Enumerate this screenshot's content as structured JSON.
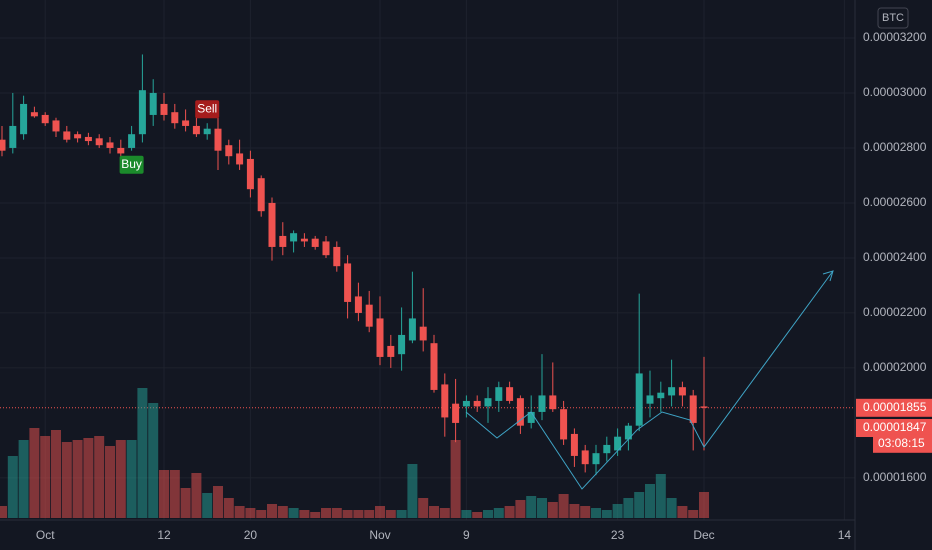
{
  "chart_data": {
    "type": "candlestick",
    "currency": "BTC",
    "categories": [
      null,
      null,
      null,
      null,
      "Oct",
      null,
      null,
      null,
      null,
      null,
      null,
      null,
      null,
      null,
      null,
      "12",
      null,
      null,
      null,
      null,
      null,
      null,
      null,
      "20",
      null,
      null,
      null,
      null,
      null,
      null,
      null,
      null,
      null,
      null,
      null,
      "Nov",
      null,
      null,
      null,
      null,
      null,
      null,
      null,
      "9",
      null,
      null,
      null,
      null,
      null,
      null,
      null,
      null,
      null,
      null,
      null,
      null,
      null,
      "23",
      null,
      null,
      null,
      null,
      null,
      null,
      null,
      "Dec",
      null,
      null,
      null,
      null,
      null,
      null,
      null,
      null,
      null,
      null,
      null,
      null,
      "14",
      null
    ],
    "open": [
      2.83e-05,
      2.8e-05,
      2.85e-05,
      2.93e-05,
      2.92e-05,
      2.9e-05,
      2.86e-05,
      2.85e-05,
      2.84e-05,
      2.835e-05,
      2.82e-05,
      2.8e-05,
      2.8e-05,
      2.85e-05,
      2.92e-05,
      2.96e-05,
      2.93e-05,
      2.9e-05,
      2.88e-05,
      2.85e-05,
      2.87e-05,
      2.81e-05,
      2.78e-05,
      2.76e-05,
      2.69e-05,
      2.6e-05,
      2.48e-05,
      2.46e-05,
      2.47e-05,
      2.47e-05,
      2.46e-05,
      2.44e-05,
      2.38e-05,
      2.26e-05,
      2.23e-05,
      2.18e-05,
      2.08e-05,
      2.05e-05,
      2.1e-05,
      2.15e-05,
      2.09e-05,
      1.94e-05,
      1.87e-05,
      1.86e-05,
      1.88e-05,
      1.86e-05,
      1.88e-05,
      1.93e-05,
      1.89e-05,
      1.8e-05,
      1.84e-05,
      1.9e-05,
      1.85e-05,
      1.76e-05,
      1.7e-05,
      1.65e-05,
      1.69e-05,
      1.7e-05,
      1.74e-05,
      1.79e-05,
      1.87e-05,
      1.89e-05,
      1.9e-05,
      1.93e-05,
      1.9e-05,
      1.86e-05,
      null,
      null,
      null,
      null,
      null,
      null,
      null,
      null,
      null,
      null,
      null,
      null,
      null,
      null
    ],
    "high": [
      2.88e-05,
      3e-05,
      2.99e-05,
      2.95e-05,
      2.93e-05,
      2.91e-05,
      2.88e-05,
      2.86e-05,
      2.855e-05,
      2.85e-05,
      2.84e-05,
      2.83e-05,
      2.88e-05,
      3.14e-05,
      3.05e-05,
      3e-05,
      2.96e-05,
      2.94e-05,
      2.92e-05,
      2.89e-05,
      2.92e-05,
      2.83e-05,
      2.83e-05,
      2.79e-05,
      2.7e-05,
      2.62e-05,
      2.53e-05,
      2.5e-05,
      2.49e-05,
      2.48e-05,
      2.48e-05,
      2.46e-05,
      2.41e-05,
      2.31e-05,
      2.28e-05,
      2.26e-05,
      2.12e-05,
      2.22e-05,
      2.35e-05,
      2.29e-05,
      2.12e-05,
      1.98e-05,
      1.96e-05,
      1.9e-05,
      1.9e-05,
      1.93e-05,
      1.95e-05,
      1.95e-05,
      1.9e-05,
      1.9e-05,
      2.05e-05,
      2.02e-05,
      1.88e-05,
      1.78e-05,
      1.72e-05,
      1.72e-05,
      1.75e-05,
      1.78e-05,
      1.8e-05,
      2.27e-05,
      1.99e-05,
      1.95e-05,
      2.03e-05,
      1.95e-05,
      1.92e-05,
      2.04e-05,
      null,
      null,
      null,
      null,
      null,
      null,
      null,
      null,
      null,
      null,
      null,
      null,
      null,
      null
    ],
    "low": [
      2.77e-05,
      2.78e-05,
      2.83e-05,
      2.91e-05,
      2.88e-05,
      2.84e-05,
      2.82e-05,
      2.82e-05,
      2.81e-05,
      2.8e-05,
      2.78e-05,
      2.76e-05,
      2.79e-05,
      2.82e-05,
      2.88e-05,
      2.9e-05,
      2.87e-05,
      2.86e-05,
      2.84e-05,
      2.83e-05,
      2.72e-05,
      2.74e-05,
      2.72e-05,
      2.62e-05,
      2.55e-05,
      2.39e-05,
      2.41e-05,
      2.42e-05,
      2.44e-05,
      2.43e-05,
      2.4e-05,
      2.35e-05,
      2.18e-05,
      2.17e-05,
      2.13e-05,
      2.01e-05,
      2e-05,
      1.99e-05,
      2.09e-05,
      2.06e-05,
      1.91e-05,
      1.75e-05,
      1.73e-05,
      1.82e-05,
      1.84e-05,
      1.8e-05,
      1.84e-05,
      1.87e-05,
      1.76e-05,
      1.78e-05,
      1.81e-05,
      1.84e-05,
      1.72e-05,
      1.64e-05,
      1.62e-05,
      1.61e-05,
      1.66e-05,
      1.68e-05,
      1.7e-05,
      1.77e-05,
      1.82e-05,
      1.84e-05,
      1.86e-05,
      1.86e-05,
      1.7e-05,
      1.7e-05,
      null,
      null,
      null,
      null,
      null,
      null,
      null,
      null,
      null,
      null,
      null,
      null,
      null,
      null
    ],
    "close": [
      2.79e-05,
      2.88e-05,
      2.96e-05,
      2.915e-05,
      2.89e-05,
      2.86e-05,
      2.83e-05,
      2.835e-05,
      2.825e-05,
      2.81e-05,
      2.8e-05,
      2.78e-05,
      2.85e-05,
      3.01e-05,
      3e-05,
      2.92e-05,
      2.89e-05,
      2.88e-05,
      2.85e-05,
      2.87e-05,
      2.79e-05,
      2.77e-05,
      2.74e-05,
      2.65e-05,
      2.57e-05,
      2.44e-05,
      2.44e-05,
      2.49e-05,
      2.46e-05,
      2.44e-05,
      2.41e-05,
      2.37e-05,
      2.24e-05,
      2.2e-05,
      2.15e-05,
      2.04e-05,
      2.04e-05,
      2.12e-05,
      2.18e-05,
      2.1e-05,
      1.92e-05,
      1.82e-05,
      1.8e-05,
      1.88e-05,
      1.86e-05,
      1.89e-05,
      1.93e-05,
      1.88e-05,
      1.79e-05,
      1.84e-05,
      1.9e-05,
      1.85e-05,
      1.74e-05,
      1.68e-05,
      1.65e-05,
      1.69e-05,
      1.72e-05,
      1.75e-05,
      1.79e-05,
      1.98e-05,
      1.9e-05,
      1.91e-05,
      1.93e-05,
      1.9e-05,
      1.8e-05,
      1.855e-05,
      null,
      null,
      null,
      null,
      null,
      null,
      null,
      null,
      null,
      null,
      null,
      null,
      null,
      null
    ],
    "volume": [
      12,
      62,
      78,
      90,
      82,
      88,
      76,
      78,
      80,
      82,
      72,
      78,
      78,
      130,
      115,
      48,
      48,
      30,
      45,
      25,
      32,
      20,
      12,
      10,
      8,
      14,
      12,
      10,
      8,
      6,
      10,
      10,
      8,
      8,
      8,
      12,
      8,
      8,
      54,
      20,
      12,
      10,
      78,
      8,
      6,
      8,
      10,
      12,
      18,
      22,
      20,
      16,
      24,
      14,
      12,
      10,
      8,
      14,
      20,
      26,
      34,
      44,
      20,
      12,
      8,
      26,
      null,
      null,
      null,
      null,
      null,
      null,
      null,
      null,
      null,
      null,
      null,
      null,
      null,
      null
    ],
    "signals": [
      null,
      null,
      null,
      null,
      null,
      null,
      null,
      null,
      null,
      null,
      null,
      null,
      "Buy",
      null,
      null,
      null,
      null,
      null,
      null,
      "Sell",
      null,
      null,
      null,
      null,
      null,
      null,
      null,
      null,
      null,
      null,
      null,
      null,
      null,
      null,
      null,
      null,
      null,
      null,
      null,
      null,
      null,
      null,
      null,
      null,
      null,
      null,
      null,
      null,
      null,
      null,
      null,
      null,
      null,
      null,
      null,
      null,
      null,
      null,
      null,
      null,
      null,
      null,
      null,
      null,
      null,
      null,
      null,
      null,
      null,
      null,
      null,
      null,
      null,
      null,
      null,
      null,
      null,
      null,
      null,
      null
    ],
    "up_color": "#26a69a",
    "down_color": "#ef5350",
    "ylim": [
      1.447e-05,
      3.338e-05
    ],
    "yticks": [
      {
        "value": 3.2e-05,
        "label": "0.00003200"
      },
      {
        "value": 3e-05,
        "label": "0.00003000"
      },
      {
        "value": 2.8e-05,
        "label": "0.00002800"
      },
      {
        "value": 2.6e-05,
        "label": "0.00002600"
      },
      {
        "value": 2.4e-05,
        "label": "0.00002400"
      },
      {
        "value": 2.2e-05,
        "label": "0.00002200"
      },
      {
        "value": 2e-05,
        "label": "0.00002000"
      },
      {
        "value": 1.6e-05,
        "label": "0.00001600"
      }
    ],
    "price_tags": [
      1.855e-05,
      1.847e-05
    ],
    "countdown": "03:08:15",
    "grid": true
  }
}
